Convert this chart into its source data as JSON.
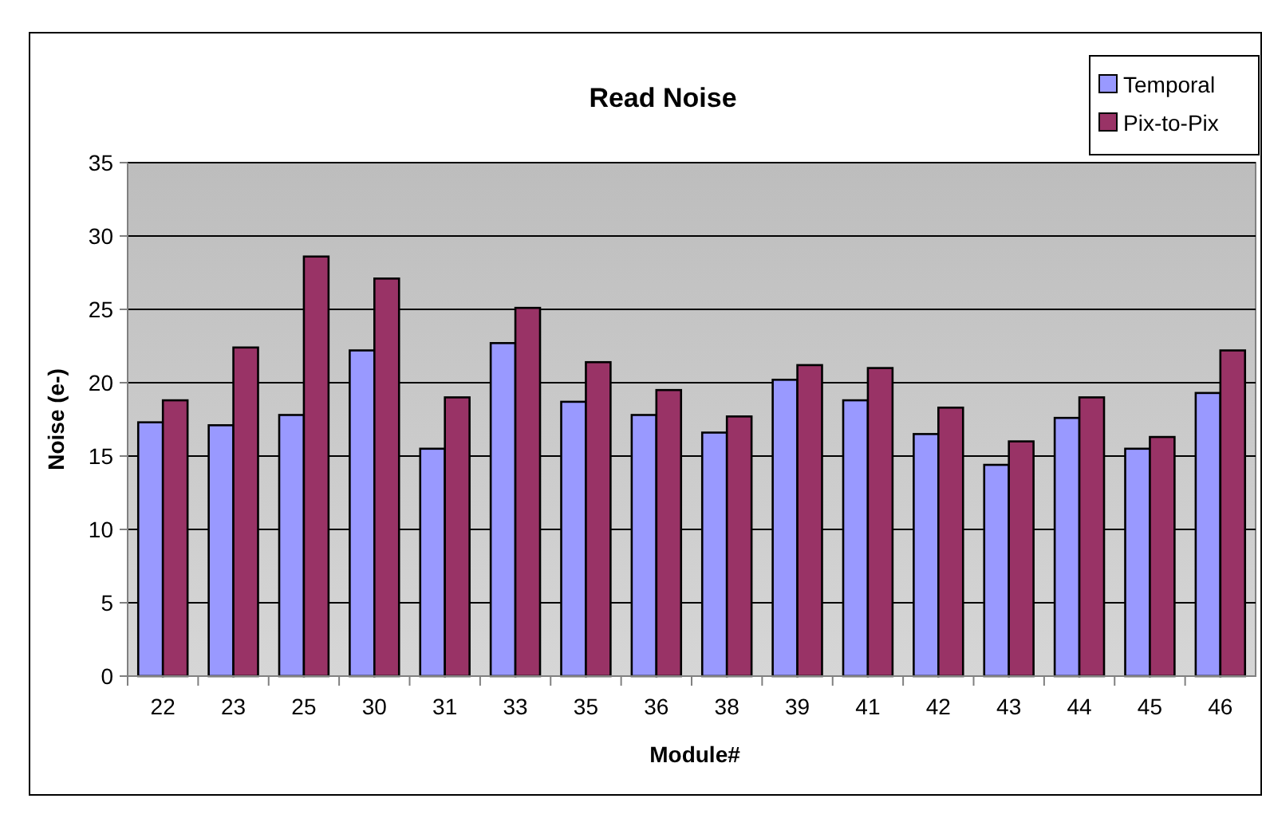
{
  "chart_data": {
    "type": "bar",
    "title": "Read Noise",
    "xlabel": "Module#",
    "ylabel": "Noise (e-)",
    "categories": [
      "22",
      "23",
      "25",
      "30",
      "31",
      "33",
      "35",
      "36",
      "38",
      "39",
      "41",
      "42",
      "43",
      "44",
      "45",
      "46"
    ],
    "series": [
      {
        "name": "Temporal",
        "color": "#9999ff",
        "values": [
          17.3,
          17.1,
          17.8,
          22.2,
          15.5,
          22.7,
          18.7,
          17.8,
          16.6,
          20.2,
          18.8,
          16.5,
          14.4,
          17.6,
          15.5,
          19.3
        ]
      },
      {
        "name": "Pix-to-Pix",
        "color": "#993366",
        "values": [
          18.8,
          22.4,
          28.6,
          27.1,
          19.0,
          25.1,
          21.4,
          19.5,
          17.7,
          21.2,
          21.0,
          18.3,
          16.0,
          19.0,
          16.3,
          22.2
        ]
      }
    ],
    "ylim": [
      0,
      35
    ],
    "yticks": [
      0,
      5,
      10,
      15,
      20,
      25,
      30,
      35
    ],
    "grid": "y",
    "legend": "top right"
  }
}
